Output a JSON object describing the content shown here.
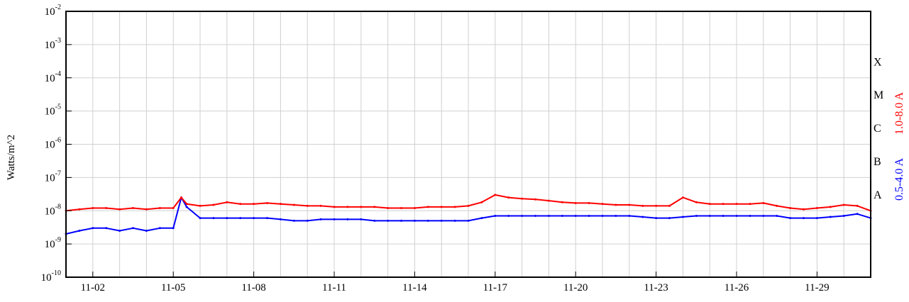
{
  "chart_data": {
    "type": "line",
    "ylabel": "Watts/m^2",
    "y_scale": "log",
    "ylim": [
      1e-10,
      0.01
    ],
    "y_ticks": [
      {
        "base": "10",
        "exp": "-2"
      },
      {
        "base": "10",
        "exp": "-3"
      },
      {
        "base": "10",
        "exp": "-4"
      },
      {
        "base": "10",
        "exp": "-5"
      },
      {
        "base": "10",
        "exp": "-6"
      },
      {
        "base": "10",
        "exp": "-7"
      },
      {
        "base": "10",
        "exp": "-8"
      },
      {
        "base": "10",
        "exp": "-9"
      },
      {
        "base": "10",
        "exp": "-10"
      }
    ],
    "x_ticks": [
      "11-02",
      "11-05",
      "11-08",
      "11-11",
      "11-14",
      "11-17",
      "11-20",
      "11-23",
      "11-26",
      "11-29"
    ],
    "xlim_days": [
      1,
      31
    ],
    "grid": true,
    "flare_classes": [
      "X",
      "M",
      "C",
      "B",
      "A"
    ],
    "series": [
      {
        "name": "0.5-4.0 A",
        "color": "#0000ff",
        "x": [
          1.0,
          1.5,
          2.0,
          2.5,
          3.0,
          3.5,
          4.0,
          4.5,
          5.0,
          5.3,
          5.5,
          6.0,
          6.5,
          7.0,
          7.5,
          8.0,
          8.5,
          9.0,
          9.5,
          10.0,
          10.5,
          11.0,
          11.5,
          12.0,
          12.5,
          13.0,
          13.5,
          14.0,
          14.5,
          15.0,
          15.5,
          16.0,
          16.5,
          17.0,
          17.5,
          18.0,
          18.5,
          19.0,
          19.5,
          20.0,
          20.5,
          21.0,
          21.5,
          22.0,
          22.5,
          23.0,
          23.5,
          24.0,
          24.5,
          25.0,
          25.5,
          26.0,
          26.5,
          27.0,
          27.5,
          28.0,
          28.5,
          29.0,
          29.5,
          30.0,
          30.5,
          31.0
        ],
        "y": [
          2e-09,
          2.5e-09,
          3e-09,
          3e-09,
          2.5e-09,
          3e-09,
          2.5e-09,
          3e-09,
          3e-09,
          2.5e-08,
          1.3e-08,
          6e-09,
          6e-09,
          6e-09,
          6e-09,
          6e-09,
          6e-09,
          5.5e-09,
          5e-09,
          5e-09,
          5.5e-09,
          5.5e-09,
          5.5e-09,
          5.5e-09,
          5e-09,
          5e-09,
          5e-09,
          5e-09,
          5e-09,
          5e-09,
          5e-09,
          5e-09,
          6e-09,
          7e-09,
          7e-09,
          7e-09,
          7e-09,
          7e-09,
          7e-09,
          7e-09,
          7e-09,
          7e-09,
          7e-09,
          7e-09,
          6.5e-09,
          6e-09,
          6e-09,
          6.5e-09,
          7e-09,
          7e-09,
          7e-09,
          7e-09,
          7e-09,
          7e-09,
          7e-09,
          6e-09,
          6e-09,
          6e-09,
          6.5e-09,
          7e-09,
          8e-09,
          6e-09
        ]
      },
      {
        "name": "1.0-8.0 A",
        "color": "#ff0000",
        "x": [
          1.0,
          1.5,
          2.0,
          2.5,
          3.0,
          3.5,
          4.0,
          4.5,
          5.0,
          5.3,
          5.5,
          6.0,
          6.5,
          7.0,
          7.5,
          8.0,
          8.5,
          9.0,
          9.5,
          10.0,
          10.5,
          11.0,
          11.5,
          12.0,
          12.5,
          13.0,
          13.5,
          14.0,
          14.5,
          15.0,
          15.5,
          16.0,
          16.5,
          17.0,
          17.5,
          18.0,
          18.5,
          19.0,
          19.5,
          20.0,
          20.5,
          21.0,
          21.5,
          22.0,
          22.5,
          23.0,
          23.5,
          24.0,
          24.5,
          25.0,
          25.5,
          26.0,
          26.5,
          27.0,
          27.5,
          28.0,
          28.5,
          29.0,
          29.5,
          30.0,
          30.5,
          31.0
        ],
        "y": [
          1e-08,
          1.1e-08,
          1.2e-08,
          1.2e-08,
          1.1e-08,
          1.2e-08,
          1.1e-08,
          1.2e-08,
          1.2e-08,
          2.5e-08,
          1.6e-08,
          1.4e-08,
          1.5e-08,
          1.8e-08,
          1.6e-08,
          1.6e-08,
          1.7e-08,
          1.6e-08,
          1.5e-08,
          1.4e-08,
          1.4e-08,
          1.3e-08,
          1.3e-08,
          1.3e-08,
          1.3e-08,
          1.2e-08,
          1.2e-08,
          1.2e-08,
          1.3e-08,
          1.3e-08,
          1.3e-08,
          1.4e-08,
          1.8e-08,
          3e-08,
          2.5e-08,
          2.3e-08,
          2.2e-08,
          2e-08,
          1.8e-08,
          1.7e-08,
          1.7e-08,
          1.6e-08,
          1.5e-08,
          1.5e-08,
          1.4e-08,
          1.4e-08,
          1.4e-08,
          2.5e-08,
          1.8e-08,
          1.6e-08,
          1.6e-08,
          1.6e-08,
          1.6e-08,
          1.7e-08,
          1.4e-08,
          1.2e-08,
          1.1e-08,
          1.2e-08,
          1.3e-08,
          1.5e-08,
          1.4e-08,
          1e-08
        ]
      }
    ]
  }
}
